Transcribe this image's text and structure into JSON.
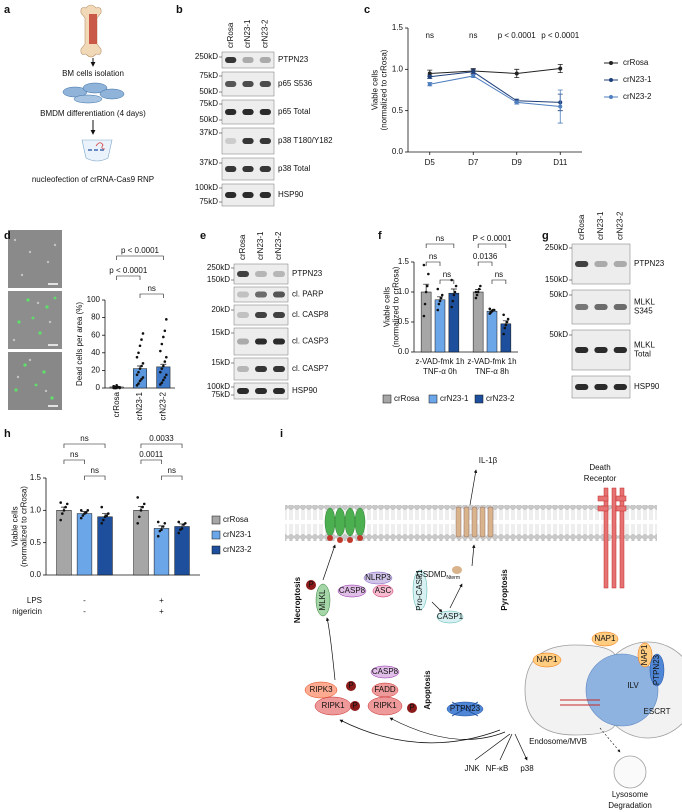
{
  "figure": {
    "panel_labels": [
      "a",
      "b",
      "c",
      "d",
      "e",
      "f",
      "g",
      "h",
      "i"
    ],
    "a": {
      "steps": [
        "BM cells isolation",
        "BMDM differentiation (4 days)",
        "nucleofection of crRNA-Cas9 RNP"
      ]
    },
    "b": {
      "lanes": [
        "crRosa",
        "crN23-1",
        "crN23-2"
      ],
      "rows": [
        {
          "label": [
            "PTPN23"
          ],
          "markers": [
            "250kD"
          ]
        },
        {
          "label": [
            "p65 S536"
          ],
          "markers": [
            "75kD",
            "50kD"
          ]
        },
        {
          "label": [
            "p65 Total"
          ],
          "markers": [
            "75kD",
            "50kD"
          ]
        },
        {
          "label": [
            "p38 T180/Y182"
          ],
          "markers": [
            "37kD"
          ]
        },
        {
          "label": [
            "p38 Total"
          ],
          "markers": [
            "37kD"
          ]
        },
        {
          "label": [
            "HSP90"
          ],
          "markers": [
            "100kD",
            "75kD"
          ]
        }
      ]
    },
    "e": {
      "lanes": [
        "crRosa",
        "crN23-1",
        "crN23-2"
      ],
      "rows": [
        {
          "label": [
            "PTPN23"
          ],
          "markers": [
            "250kD",
            "150kD"
          ]
        },
        {
          "label": [
            "cl. PARP"
          ]
        },
        {
          "label": [
            "cl. CASP8"
          ],
          "markers": [
            "20kD"
          ]
        },
        {
          "label": [
            "cl. CASP3"
          ],
          "markers": [
            "15kD"
          ]
        },
        {
          "label": [
            "cl. CASP7"
          ],
          "markers": [
            "15kD"
          ]
        },
        {
          "label": [
            "HSP90"
          ],
          "markers": [
            "100kD",
            "75kD"
          ]
        }
      ]
    },
    "g": {
      "lanes": [
        "crRosa",
        "crN23-1",
        "crN23-2"
      ],
      "rows": [
        {
          "label": [
            "PTPN23"
          ],
          "markers": [
            "250kD",
            "150kD"
          ]
        },
        {
          "label": [
            "MLKL",
            "S345"
          ],
          "markers": [
            "50kD"
          ]
        },
        {
          "label": [
            "MLKL",
            "Total"
          ],
          "markers": [
            "50kD"
          ]
        },
        {
          "label": [
            "HSP90"
          ]
        }
      ]
    },
    "i": {
      "labels": [
        "IL-1β",
        "Death",
        "Receptor",
        "Necroptosis",
        "MLKL",
        "P",
        "NLRP3",
        "CASP8",
        "ASC",
        "Pro-CASP1",
        "CASP1",
        "GSDMD",
        "Nterm",
        "Pyroptosis",
        "NAP1",
        "NAP1",
        "PTPN23",
        "ILV",
        "ESCRT",
        "NAP1",
        "RIPK3",
        "P",
        "RIPK1",
        "P",
        "CASP8",
        "FADD",
        "RIPK1",
        "P",
        "Apoptosis",
        "PTPN23",
        "Endosome/MVB",
        "Lysosome",
        "Degradation",
        "JNK",
        "NF-κB",
        "p38"
      ]
    }
  },
  "chart_data": [
    {
      "type": "line",
      "categories": [
        "D5",
        "D7",
        "D9",
        "D11"
      ],
      "y_label": [
        "Viable cells",
        "(normalized to crRosa)"
      ],
      "ylim": [
        0,
        1.5
      ],
      "yticks": [
        {
          "value": 0,
          "label": "0.0"
        },
        0.5,
        {
          "value": 1,
          "label": "1.0"
        },
        1.5
      ],
      "annotations": [
        "ns",
        "ns",
        "p < 0.0001",
        "p < 0.0001"
      ],
      "legend": "right",
      "series": [
        {
          "name": "crRosa",
          "color": "#222222",
          "values": [
            0.95,
            0.98,
            0.95,
            1.01
          ],
          "errors": [
            0.04,
            0.03,
            0.05,
            0.05
          ]
        },
        {
          "name": "crN23-1",
          "color": "#1f3f7a",
          "values": [
            0.91,
            0.97,
            0.62,
            0.6
          ],
          "errors": [
            0.02,
            0.03,
            0.02,
            0.1
          ]
        },
        {
          "name": "crN23-2",
          "color": "#4f7fbf",
          "values": [
            0.82,
            0.92,
            0.6,
            0.55
          ],
          "errors": [
            0.02,
            0.02,
            0.02,
            0.2
          ]
        }
      ]
    },
    {
      "type": "bar",
      "categories": [
        "crRosa",
        "crN23-1",
        "crN23-2"
      ],
      "values": [
        1.2,
        22,
        24
      ],
      "errors": [
        0.5,
        3,
        3
      ],
      "colors": [
        "#a6a6a6",
        "#5b97dc",
        "#3e78c8"
      ],
      "points": [
        [
          0,
          0,
          0,
          1,
          1,
          2,
          0,
          3,
          1,
          0,
          2,
          1
        ],
        [
          3,
          5,
          8,
          10,
          12,
          15,
          18,
          22,
          25,
          28,
          35,
          40,
          48,
          55,
          62
        ],
        [
          4,
          6,
          9,
          12,
          15,
          18,
          22,
          25,
          30,
          35,
          42,
          50,
          58,
          65,
          78
        ]
      ],
      "y_label": [
        "Dead cells per area (%)"
      ],
      "ylim": [
        0,
        100
      ],
      "yticks": [
        0,
        20,
        40,
        60,
        80,
        100
      ],
      "annotations": [
        "p < 0.0001",
        "p < 0.0001",
        "ns"
      ]
    },
    {
      "type": "bar",
      "categories": [
        [
          "z-VAD-fmk 1h",
          "TNF-α 0h"
        ],
        [
          "z-VAD-fmk 1h",
          "TNF-α 8h"
        ]
      ],
      "y_label": [
        "Viable cells",
        "(normalized to crRosa)"
      ],
      "ylim": [
        0,
        1.5
      ],
      "yticks": [
        {
          "value": 0,
          "label": "0.0"
        },
        0.5,
        {
          "value": 1,
          "label": "1.0"
        },
        1.5
      ],
      "annotations": [
        "ns",
        "ns",
        "ns",
        "P < 0.0001",
        "0.0136",
        "ns"
      ],
      "legend": "bottom",
      "series": [
        {
          "name": "crRosa",
          "color": "#a6a6a6",
          "values": [
            1,
            1
          ],
          "errors": [
            0.13,
            0.04
          ],
          "points": [
            [
              0.6,
              0.8,
              1.0,
              1.1,
              1.3,
              1.45
            ],
            [
              0.9,
              0.95,
              1.0,
              1.05,
              1.1,
              1.0
            ]
          ]
        },
        {
          "name": "crN23-1",
          "color": "#6ba6e8",
          "values": [
            0.87,
            0.68
          ],
          "errors": [
            0.05,
            0.02
          ],
          "points": [
            [
              0.7,
              0.8,
              0.85,
              0.9,
              0.95,
              1.05
            ],
            [
              0.64,
              0.66,
              0.68,
              0.7,
              0.7,
              0.72
            ]
          ]
        },
        {
          "name": "crN23-2",
          "color": "#1d4f9c",
          "values": [
            0.98,
            0.47
          ],
          "errors": [
            0.07,
            0.05
          ],
          "points": [
            [
              0.75,
              0.85,
              0.95,
              1.0,
              1.1,
              1.2
            ],
            [
              0.3,
              0.4,
              0.45,
              0.5,
              0.55,
              0.62
            ]
          ]
        }
      ]
    },
    {
      "type": "bar",
      "categories": [
        null,
        null
      ],
      "conditions": [
        {
          "name": "LPS",
          "levels": [
            "-",
            "+"
          ]
        },
        {
          "name": "nigericin",
          "levels": [
            "-",
            "+"
          ]
        }
      ],
      "y_label": [
        "Viable cells",
        "(normalized to crRosa)"
      ],
      "ylim": [
        0,
        1.5
      ],
      "yticks": [
        {
          "value": 0,
          "label": "0.0"
        },
        0.5,
        {
          "value": 1,
          "label": "1.0"
        },
        1.5
      ],
      "annotations": [
        "ns",
        "ns",
        "ns",
        "0.0033",
        "0.0011",
        "ns"
      ],
      "legend": "right",
      "series": [
        {
          "name": "crRosa",
          "color": "#a6a6a6",
          "values": [
            1,
            1
          ],
          "errors": [
            0.05,
            0.06
          ],
          "points": [
            [
              0.85,
              0.95,
              1.0,
              1.05,
              1.1,
              1.12
            ],
            [
              0.8,
              0.9,
              1.0,
              1.05,
              1.1,
              1.2
            ]
          ]
        },
        {
          "name": "crN23-1",
          "color": "#6ba6e8",
          "values": [
            0.95,
            0.72
          ],
          "errors": [
            0.03,
            0.04
          ],
          "points": [
            [
              0.88,
              0.92,
              0.95,
              0.97,
              1.0,
              1.0
            ],
            [
              0.6,
              0.68,
              0.7,
              0.75,
              0.8,
              0.82
            ]
          ]
        },
        {
          "name": "crN23-2",
          "color": "#1d4f9c",
          "values": [
            0.9,
            0.75
          ],
          "errors": [
            0.05,
            0.04
          ],
          "points": [
            [
              0.8,
              0.85,
              0.9,
              0.92,
              0.95,
              1.05
            ],
            [
              0.65,
              0.7,
              0.72,
              0.78,
              0.8,
              0.82
            ]
          ]
        }
      ]
    }
  ]
}
